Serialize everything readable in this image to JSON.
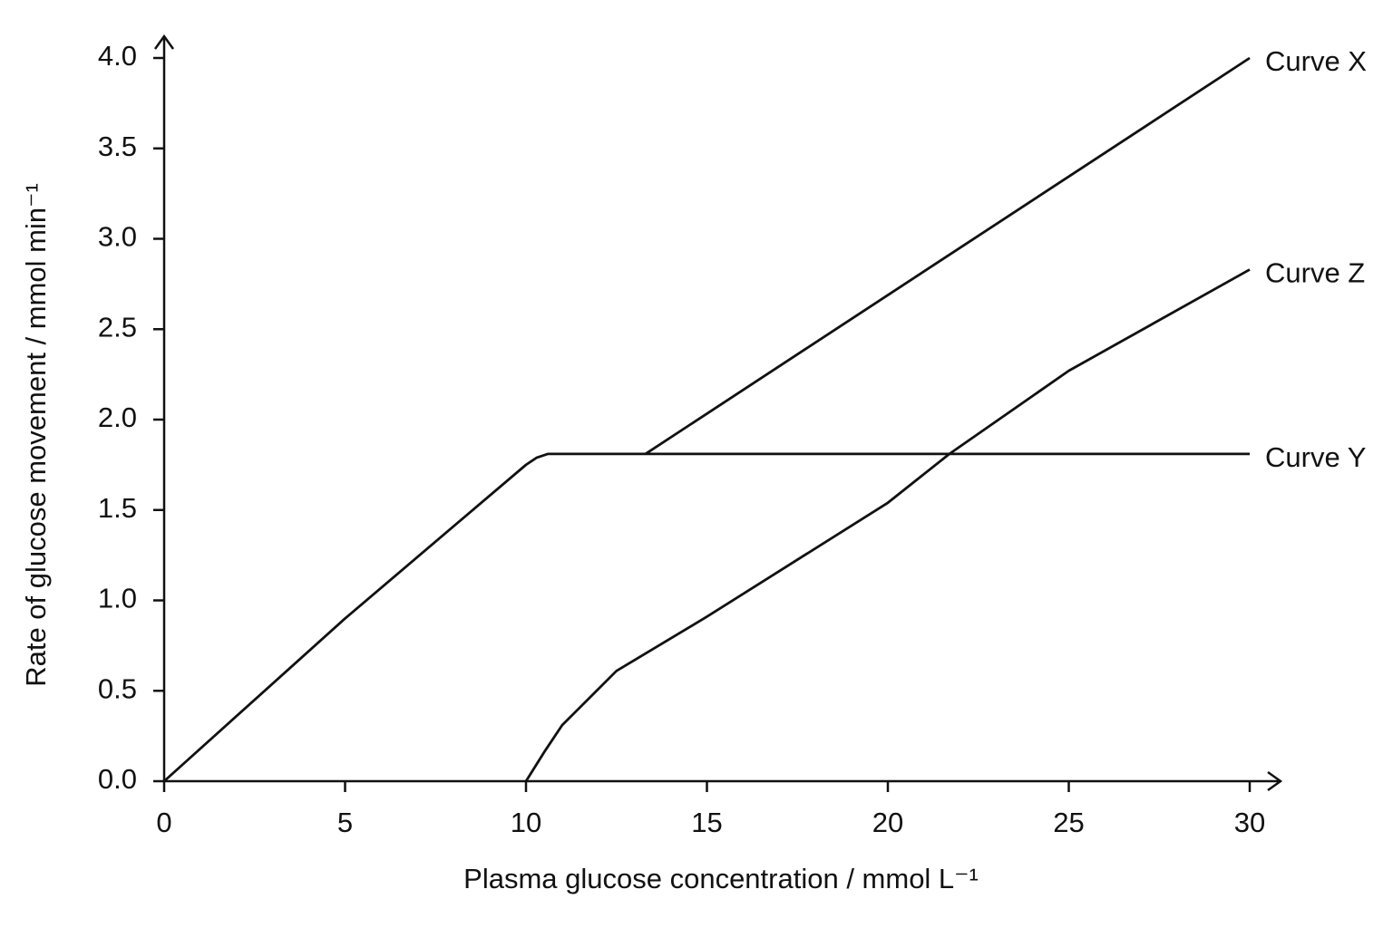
{
  "chart_data": {
    "type": "line",
    "x_label": "Plasma glucose concentration / mmol L⁻¹",
    "y_label": "Rate of glucose movement / mmol min⁻¹",
    "xlim": [
      0,
      30
    ],
    "ylim": [
      0,
      4.0
    ],
    "xticks": [
      0,
      5,
      10,
      15,
      20,
      25,
      30
    ],
    "yticks": [
      {
        "value": 0,
        "label": "0.0"
      },
      {
        "value": 0.5,
        "label": "0.5"
      },
      {
        "value": 1,
        "label": "1.0"
      },
      {
        "value": 1.5,
        "label": "1.5"
      },
      {
        "value": 2,
        "label": "2.0"
      },
      {
        "value": 2.5,
        "label": "2.5"
      },
      {
        "value": 3,
        "label": "3.0"
      },
      {
        "value": 3.5,
        "label": "3.5"
      },
      {
        "value": 4,
        "label": "4.0"
      }
    ],
    "series": [
      {
        "name": "Curve X",
        "color": "#111111",
        "x": [
          13.3,
          30
        ],
        "values": [
          1.81,
          4.0
        ]
      },
      {
        "name": "Curve Z",
        "color": "#111111",
        "x": [
          10,
          10.5,
          11,
          12.5,
          15,
          20,
          21.7,
          25,
          30
        ],
        "values": [
          0,
          0.16,
          0.31,
          0.61,
          0.91,
          1.54,
          1.81,
          2.27,
          2.83
        ]
      },
      {
        "name": "Curve Y",
        "color": "#111111",
        "x": [
          0,
          5,
          10,
          10.3,
          10.6,
          30
        ],
        "values": [
          0,
          0.9,
          1.75,
          1.79,
          1.81,
          1.81
        ]
      }
    ]
  }
}
